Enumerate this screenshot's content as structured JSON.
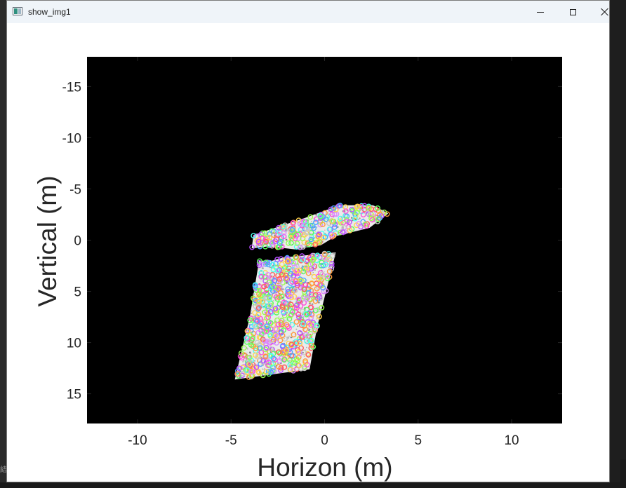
{
  "window": {
    "title": "show_img1",
    "icon": "figure-window-icon",
    "controls": {
      "minimize": "minimize-icon",
      "maximize": "maximize-icon",
      "close": "close-icon"
    }
  },
  "desktop": {
    "edge_glyph": "結"
  },
  "chart_data": {
    "type": "scatter",
    "xlabel": "Horizon (m)",
    "ylabel": "Vertical (m)",
    "xlim": [
      -12.7,
      12.7
    ],
    "ylim": [
      -17.9,
      17.9
    ],
    "y_reversed": true,
    "x_ticks": [
      -10,
      -5,
      0,
      5,
      10
    ],
    "y_ticks": [
      -15,
      -10,
      -5,
      0,
      5,
      10,
      15
    ],
    "x_tick_labels": [
      "-10",
      "-5",
      "0",
      "5",
      "10"
    ],
    "y_tick_labels": [
      "-15",
      "-10",
      "-5",
      "0",
      "5",
      "10",
      "15"
    ],
    "grid": false,
    "background": "#000000",
    "point_cloud_color": "#ffffff",
    "region_upper": [
      [
        -3.8,
        -0.5
      ],
      [
        -1.0,
        -2.2
      ],
      [
        0.8,
        -3.4
      ],
      [
        2.6,
        -3.4
      ],
      [
        3.4,
        -2.6
      ],
      [
        2.4,
        -1.2
      ],
      [
        0.6,
        -0.4
      ],
      [
        -0.2,
        0.5
      ],
      [
        -1.6,
        0.9
      ],
      [
        -3.0,
        0.6
      ],
      [
        -3.9,
        0.8
      ]
    ],
    "region_lower": [
      [
        -3.5,
        2.0
      ],
      [
        -2.8,
        2.0
      ],
      [
        -2.2,
        1.7
      ],
      [
        0.6,
        1.2
      ],
      [
        -0.4,
        8.5
      ],
      [
        -0.8,
        12.6
      ],
      [
        -4.8,
        13.6
      ],
      [
        -4.0,
        7.5
      ]
    ],
    "markers": {
      "style": "ring",
      "colors": [
        "#ff4fd8",
        "#5cff5c",
        "#4da6ff",
        "#ff5c5c",
        "#ffd24d",
        "#b84dff",
        "#4dfff0",
        "#ff9a3d",
        "#9aff4d",
        "#d98cff",
        "#c8c8c8"
      ],
      "count_upper": 240,
      "count_lower": 620
    }
  }
}
